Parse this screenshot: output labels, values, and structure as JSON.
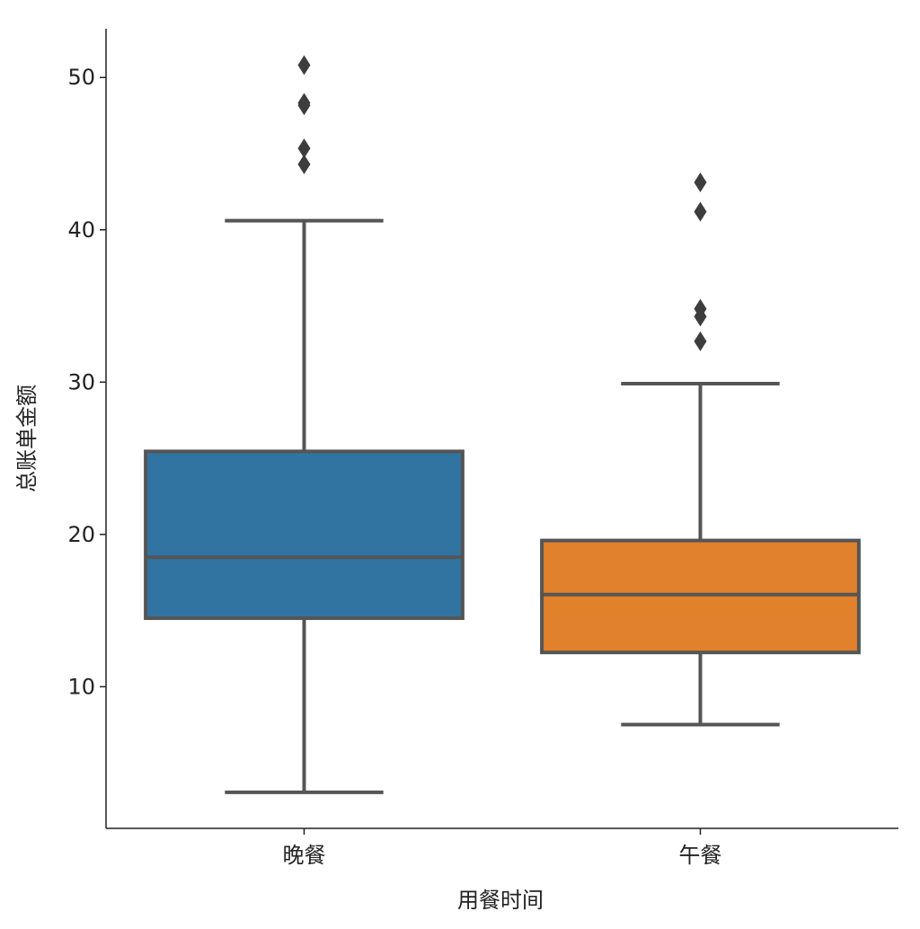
{
  "chart_data": {
    "type": "box",
    "xlabel": "用餐时间",
    "ylabel": "总账单金额",
    "categories": [
      "晚餐",
      "午餐"
    ],
    "boxes": [
      {
        "whislo": 3.07,
        "q1": 14.5,
        "med": 18.5,
        "q3": 25.45,
        "whishi": 40.6,
        "fliers": [
          50.81,
          48.33,
          48.17,
          45.35,
          44.3
        ],
        "color": "#3274a1"
      },
      {
        "whislo": 7.51,
        "q1": 12.25,
        "med": 16.05,
        "q3": 19.6,
        "whishi": 29.9,
        "fliers": [
          43.11,
          41.19,
          34.81,
          34.3,
          32.68
        ],
        "color": "#e1812c"
      }
    ],
    "ylim": [
      0.7,
      53.2
    ],
    "yticks": [
      10,
      20,
      30,
      40,
      50
    ],
    "edge_color": "#555555"
  }
}
